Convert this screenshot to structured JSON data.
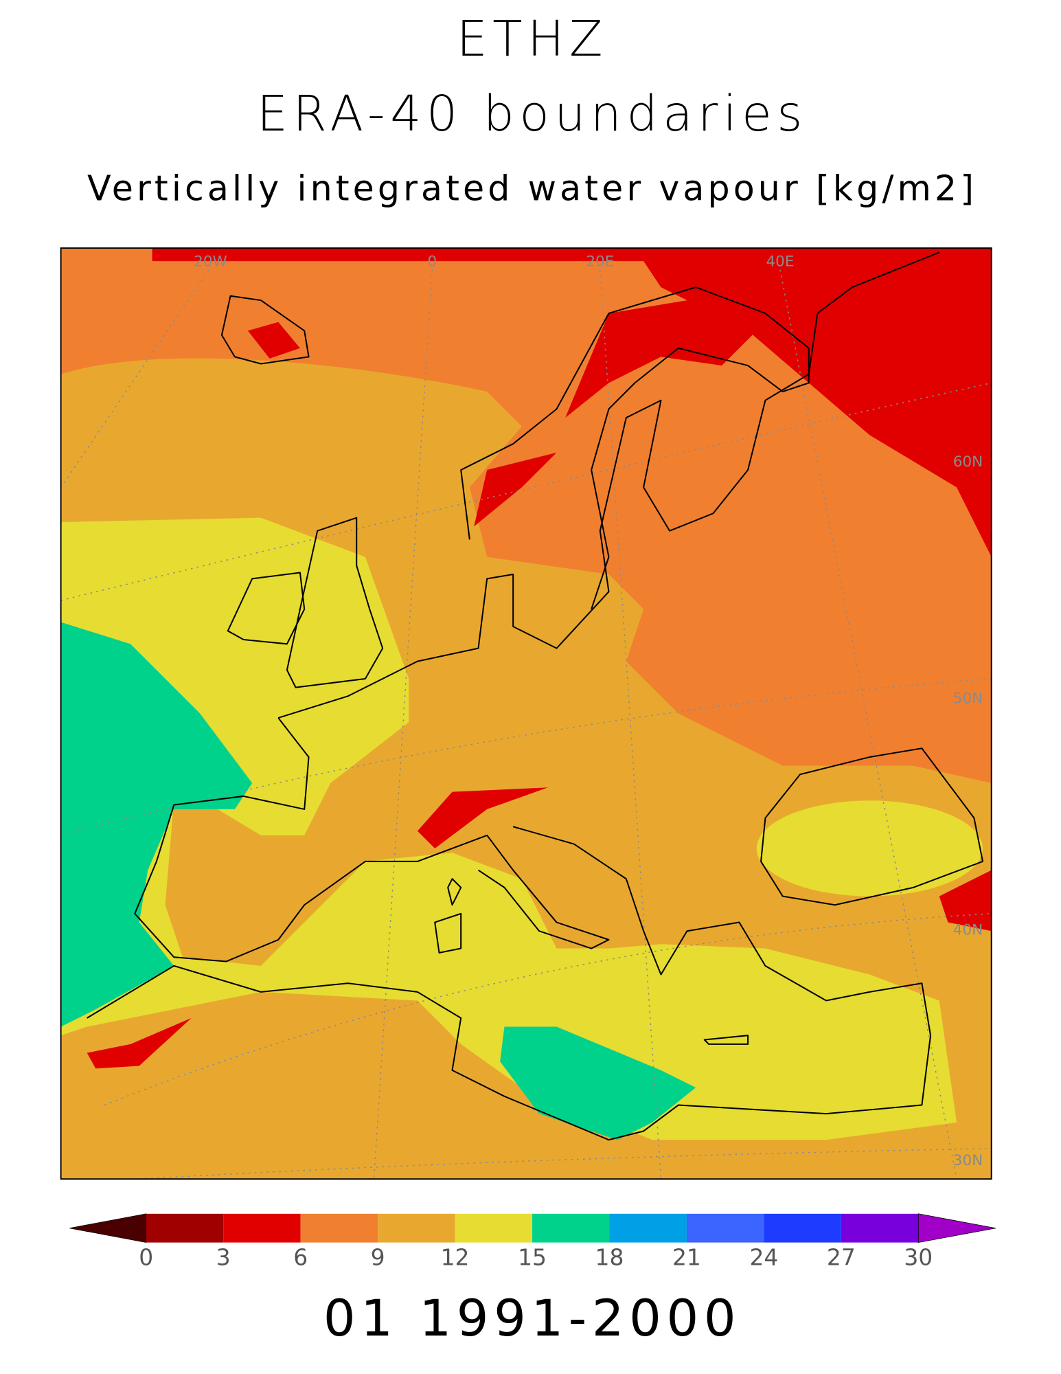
{
  "header": {
    "institution": "ETHZ",
    "experiment": "ERA-40 boundaries",
    "variable": "Vertically integrated water vapour [kg/m2]"
  },
  "map": {
    "lon_labels": [
      "20W",
      "0",
      "20E",
      "40E"
    ],
    "lat_labels": [
      "60N",
      "50N",
      "40N",
      "30N"
    ]
  },
  "colorbar": {
    "ticks": [
      0,
      3,
      6,
      9,
      12,
      15,
      18,
      21,
      24,
      27,
      30
    ],
    "under_color": "#4a0000",
    "colors": [
      "#a00000",
      "#e00000",
      "#f08030",
      "#e8a830",
      "#e6dc32",
      "#00d28c",
      "#00a0e6",
      "#3c64ff",
      "#1e3cff",
      "#7800dc"
    ],
    "over_color": "#a000c8"
  },
  "footer": "01 1991-2000"
}
